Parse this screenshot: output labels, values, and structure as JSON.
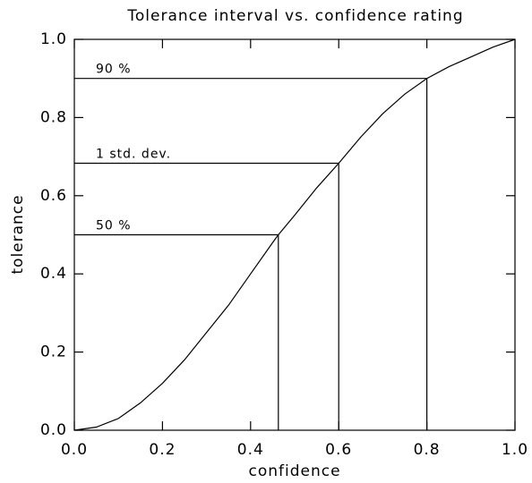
{
  "chart_data": {
    "type": "line",
    "title": "Tolerance interval vs. confidence rating",
    "xlabel": "confidence",
    "ylabel": "tolerance",
    "x": [
      0,
      0.05,
      0.1,
      0.15,
      0.2,
      0.25,
      0.3,
      0.35,
      0.4,
      0.45,
      0.463,
      0.5,
      0.55,
      0.6,
      0.65,
      0.7,
      0.75,
      0.8,
      0.85,
      0.9,
      0.95,
      1.0
    ],
    "series": [
      {
        "color": "#000000",
        "values": [
          0,
          0.008,
          0.03,
          0.07,
          0.12,
          0.18,
          0.25,
          0.32,
          0.4,
          0.48,
          0.5,
          0.55,
          0.62,
          0.683,
          0.75,
          0.81,
          0.86,
          0.9,
          0.93,
          0.955,
          0.98,
          1.0
        ]
      }
    ],
    "annotations": [
      {
        "text": "90 %",
        "x": 0.8,
        "y": 0.9
      },
      {
        "text": "1 std. dev.",
        "x": 0.6,
        "y": 0.683
      },
      {
        "text": "50 %",
        "x": 0.463,
        "y": 0.5
      }
    ],
    "xlim": [
      0,
      1
    ],
    "ylim": [
      0,
      1
    ],
    "xticks": [
      {
        "value": 0,
        "label": "0.0"
      },
      0.2,
      0.4,
      0.6,
      0.8,
      {
        "value": 1,
        "label": "1.0"
      }
    ],
    "yticks": [
      {
        "value": 0,
        "label": "0.0"
      },
      0.2,
      0.4,
      0.6,
      0.8,
      {
        "value": 1,
        "label": "1.0"
      }
    ],
    "grid": false
  }
}
